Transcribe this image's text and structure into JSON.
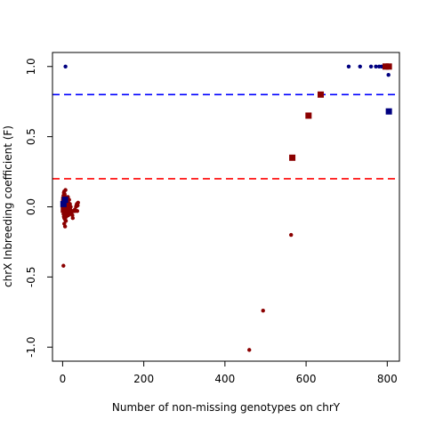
{
  "chart_data": {
    "type": "scatter",
    "xlabel": "Number of non-missing genotypes on chrY",
    "ylabel": "chrX Inbreeding coefficient (F)",
    "xlim": [
      -25,
      830
    ],
    "ylim": [
      -1.1,
      1.1
    ],
    "x_ticks": [
      0,
      200,
      400,
      600,
      800
    ],
    "y_ticks": [
      -1.0,
      -0.5,
      0.0,
      0.5,
      1.0
    ],
    "y_tick_labels": [
      "-1.0",
      "-0.5",
      "0.0",
      "0.5",
      "1.0"
    ],
    "reference_lines": [
      {
        "y": 0.8,
        "color": "#0000ff",
        "style": "dashed"
      },
      {
        "y": 0.2,
        "color": "#ff0000",
        "style": "dashed"
      }
    ],
    "series": [
      {
        "marker": "circle",
        "color": "#000080",
        "points": [
          [
            7,
            1.0
          ],
          [
            705,
            1.0
          ],
          [
            733,
            1.0
          ],
          [
            760,
            1.0
          ],
          [
            772,
            1.0
          ],
          [
            780,
            1.0
          ],
          [
            786,
            1.0
          ],
          [
            800,
            1.0
          ],
          [
            803,
            0.94
          ],
          [
            2,
            0.01
          ],
          [
            5,
            0.03
          ],
          [
            3,
            -0.01
          ]
        ]
      },
      {
        "marker": "circle",
        "color": "#8b0000",
        "points": [
          [
            2,
            -0.42
          ],
          [
            460,
            -1.02
          ],
          [
            494,
            -0.74
          ],
          [
            563,
            -0.2
          ],
          [
            1,
            0.05
          ],
          [
            2,
            0.08
          ],
          [
            3,
            0.1
          ],
          [
            4,
            0.11
          ],
          [
            5,
            0.09
          ],
          [
            6,
            0.07
          ],
          [
            7,
            0.12
          ],
          [
            8,
            0.06
          ],
          [
            9,
            0.04
          ],
          [
            10,
            0.02
          ],
          [
            11,
            0.0
          ],
          [
            12,
            -0.02
          ],
          [
            13,
            -0.04
          ],
          [
            14,
            0.03
          ],
          [
            15,
            0.01
          ],
          [
            16,
            -0.01
          ],
          [
            17,
            -0.03
          ],
          [
            18,
            0.02
          ],
          [
            19,
            -0.02
          ],
          [
            20,
            0.0
          ],
          [
            21,
            -0.03
          ],
          [
            22,
            -0.04
          ],
          [
            24,
            -0.06
          ],
          [
            26,
            -0.03
          ],
          [
            28,
            -0.03
          ],
          [
            30,
            -0.02
          ],
          [
            33,
            0.0
          ],
          [
            35,
            0.02
          ],
          [
            37,
            0.01
          ],
          [
            38,
            0.03
          ],
          [
            1,
            -0.02
          ],
          [
            2,
            -0.05
          ],
          [
            3,
            -0.07
          ],
          [
            4,
            -0.08
          ],
          [
            5,
            -0.05
          ],
          [
            6,
            -0.09
          ],
          [
            7,
            -0.06
          ],
          [
            8,
            -0.1
          ],
          [
            9,
            -0.07
          ],
          [
            10,
            -0.05
          ],
          [
            6,
            -0.14
          ],
          [
            4,
            -0.12
          ],
          [
            3,
            -0.03
          ],
          [
            5,
            0.0
          ],
          [
            7,
            0.02
          ],
          [
            9,
            -0.01
          ],
          [
            11,
            0.05
          ],
          [
            13,
            0.07
          ],
          [
            15,
            -0.05
          ],
          [
            2,
            0.02
          ],
          [
            4,
            0.04
          ],
          [
            6,
            0.01
          ],
          [
            8,
            -0.02
          ],
          [
            10,
            0.06
          ],
          [
            12,
            0.04
          ],
          [
            14,
            -0.06
          ],
          [
            16,
            0.05
          ],
          [
            18,
            -0.05
          ],
          [
            1,
            0.0
          ],
          [
            3,
            0.06
          ],
          [
            5,
            0.08
          ],
          [
            25,
            -0.08
          ],
          [
            27,
            -0.03
          ],
          [
            31,
            -0.03
          ],
          [
            36,
            -0.03
          ],
          [
            34,
            0.01
          ]
        ]
      },
      {
        "marker": "square",
        "color": "#8b0000",
        "points": [
          [
            566,
            0.35
          ],
          [
            606,
            0.65
          ],
          [
            636,
            0.8
          ],
          [
            796,
            1.0
          ],
          [
            804,
            1.0
          ],
          [
            4,
            0.05
          ],
          [
            7,
            0.02
          ],
          [
            3,
            -0.02
          ],
          [
            9,
            0.03
          ],
          [
            5,
            0.0
          ]
        ]
      },
      {
        "marker": "square",
        "color": "#000080",
        "points": [
          [
            804,
            0.68
          ],
          [
            2,
            0.02
          ],
          [
            6,
            0.05
          ]
        ]
      }
    ]
  }
}
